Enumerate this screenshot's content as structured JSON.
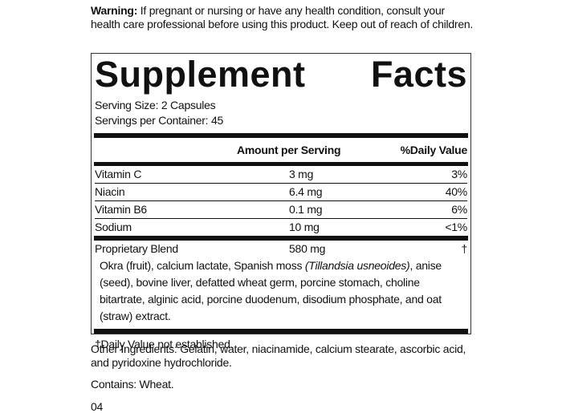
{
  "warning": {
    "label": "Warning:",
    "text": "If pregnant or nursing or have any health condition, consult your health care professional before using this product. Keep out of reach of children."
  },
  "facts": {
    "title": "Supplement Facts",
    "serving_size": "Serving Size: 2 Capsules",
    "servings_per_container": "Servings per Container: 45",
    "header": {
      "amount": "Amount per Serving",
      "daily_value": "%Daily Value"
    },
    "rows": [
      {
        "name": "Vitamin C",
        "amount": "3 mg",
        "daily_value": "3%"
      },
      {
        "name": "Niacin",
        "amount": "6.4 mg",
        "daily_value": "40%"
      },
      {
        "name": "Vitamin B6",
        "amount": "0.1 mg",
        "daily_value": "6%"
      },
      {
        "name": "Sodium",
        "amount": "10 mg",
        "daily_value": "<1%"
      }
    ],
    "blend": {
      "name": "Proprietary Blend",
      "amount": "580 mg",
      "daily_value": "†",
      "description": [
        "Okra (fruit), calcium lactate, Spanish moss ",
        "(Tillandsia usneoides)",
        ", anise (seed), bovine liver, defatted wheat germ, porcine stomach, choline bitartrate, alginic acid, porcine duodenum, disodium phosphate, and oat (straw) extract."
      ]
    },
    "footnote": "†Daily Value not established."
  },
  "other_ingredients": "Other Ingredients: Gelatin, water, niacinamide, calcium stearate, ascorbic acid, and pyridoxine hydrochloride.",
  "contains": "Contains: Wheat.",
  "code": "04"
}
